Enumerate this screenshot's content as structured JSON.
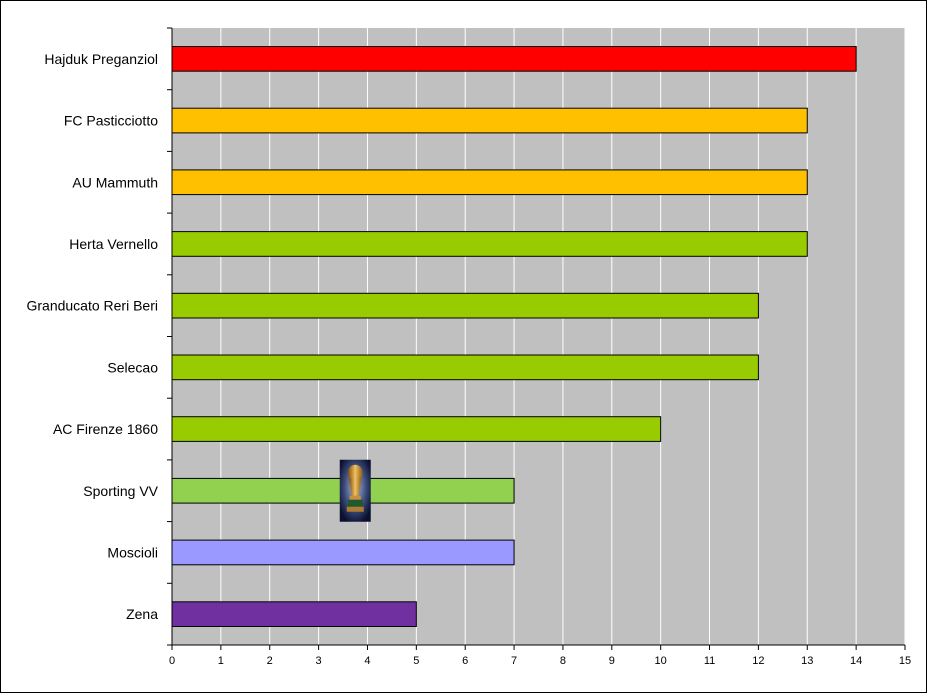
{
  "chart_data": {
    "type": "bar",
    "orientation": "horizontal",
    "title": "",
    "xlabel": "",
    "ylabel": "",
    "categories": [
      "Hajduk Preganziol",
      "FC Pasticciotto",
      "AU Mammuth",
      "Herta Vernello",
      "Granducato Reri Beri",
      "Selecao",
      "AC Firenze 1860",
      "Sporting VV",
      "Moscioli",
      "Zena"
    ],
    "values": [
      14,
      13,
      13,
      13,
      12,
      12,
      10,
      7,
      7,
      5
    ],
    "bar_colors": [
      "#ff0000",
      "#ffc000",
      "#ffc000",
      "#99cc00",
      "#99cc00",
      "#99cc00",
      "#99cc00",
      "#92d050",
      "#9999ff",
      "#7030a0"
    ],
    "xlim": [
      0,
      15
    ],
    "x_ticks": [
      "0",
      "1",
      "2",
      "3",
      "4",
      "5",
      "6",
      "7",
      "8",
      "9",
      "10",
      "11",
      "12",
      "13",
      "14",
      "15"
    ],
    "grid": true,
    "plot_background": "#c0c0c0",
    "gridline_color": "#ffffff",
    "legend": "none",
    "annotation": {
      "type": "trophy-icon",
      "category": "Sporting VV"
    }
  }
}
